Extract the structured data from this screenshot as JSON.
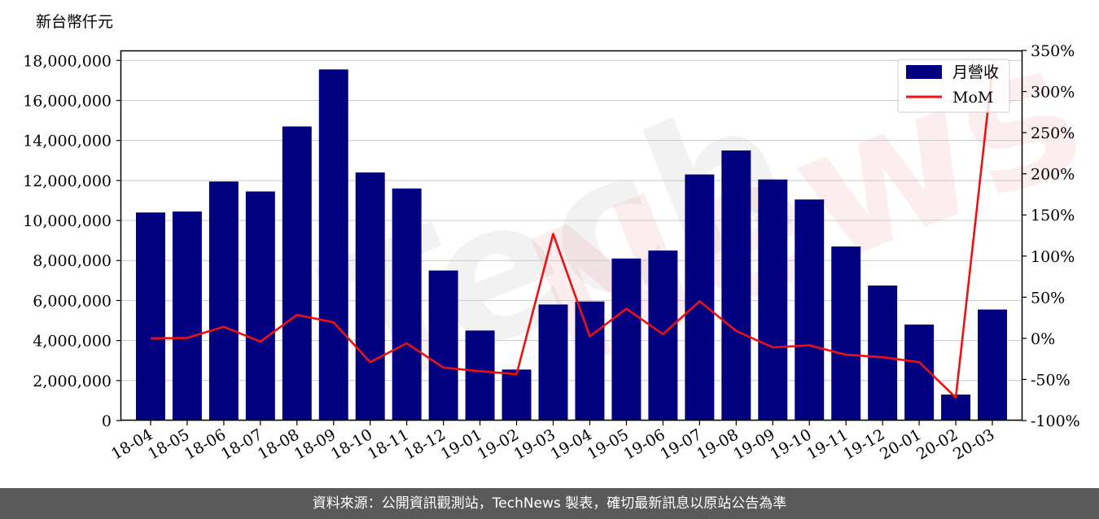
{
  "chart_data": {
    "type": "bar",
    "unit_label": "新台幣仟元",
    "categories": [
      "18-04",
      "18-05",
      "18-06",
      "18-07",
      "18-08",
      "18-09",
      "18-10",
      "18-11",
      "18-12",
      "19-01",
      "19-02",
      "19-03",
      "19-04",
      "19-05",
      "19-06",
      "19-07",
      "19-08",
      "19-09",
      "19-10",
      "19-11",
      "19-12",
      "20-01",
      "20-02",
      "20-03"
    ],
    "series": [
      {
        "name": "月營收",
        "type": "bar",
        "axis": "left",
        "color": "#000080",
        "values": [
          10400000,
          10450000,
          11950000,
          11450000,
          14700000,
          17550000,
          12400000,
          11600000,
          7500000,
          4500000,
          2550000,
          5800000,
          5950000,
          8100000,
          8500000,
          12300000,
          13500000,
          12050000,
          11050000,
          8700000,
          6750000,
          4800000,
          1300000,
          5550000
        ]
      },
      {
        "name": "MoM",
        "type": "line",
        "axis": "right",
        "color": "#ee1111",
        "values": [
          0,
          0.5,
          14,
          -4,
          28.5,
          19.5,
          -29,
          -6,
          -35.5,
          -40,
          -43.5,
          127,
          2.5,
          36,
          5,
          45,
          9,
          -11,
          -8.5,
          -20,
          -23,
          -29,
          -72,
          327
        ]
      }
    ],
    "y_left": {
      "min": 0,
      "max": 18500000,
      "ticks": [
        0,
        2000000,
        4000000,
        6000000,
        8000000,
        10000000,
        12000000,
        14000000,
        16000000,
        18000000
      ],
      "tick_labels": [
        "0",
        "2,000,000",
        "4,000,000",
        "6,000,000",
        "8,000,000",
        "10,000,000",
        "12,000,000",
        "14,000,000",
        "16,000,000",
        "18,000,000"
      ]
    },
    "y_right": {
      "min": -100,
      "max": 350,
      "ticks": [
        -100,
        -50,
        0,
        50,
        100,
        150,
        200,
        250,
        300,
        350
      ],
      "tick_labels": [
        "-100%",
        "-50%",
        "0%",
        "50%",
        "100%",
        "150%",
        "200%",
        "250%",
        "300%",
        "350%"
      ]
    },
    "grid": "horizontal",
    "legend_position": "top-right",
    "watermark": "TechNews"
  },
  "footer": {
    "source_text": "資料來源：公開資訊觀測站，TechNews 製表，確切最新訊息以原站公告為準"
  }
}
